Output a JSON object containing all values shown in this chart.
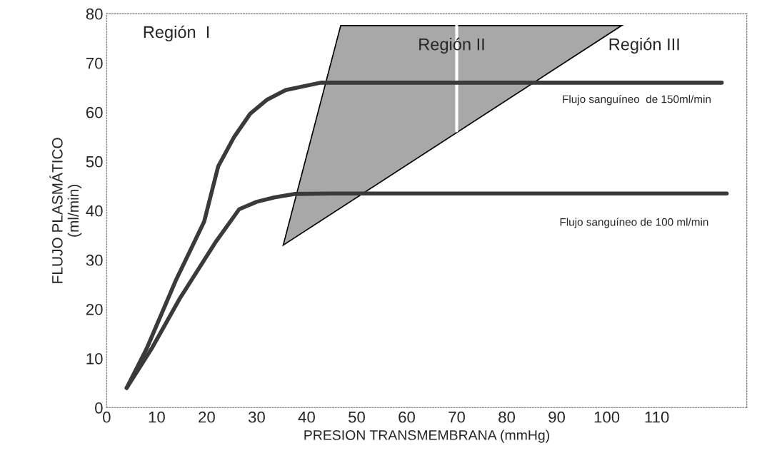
{
  "chart_data": {
    "type": "line",
    "xlabel": "PRESION TRANSMEMBRANA (mmHg)",
    "ylabel": "FLUJO PLASMÁTICO\n(ml/min)",
    "series": [
      {
        "type": "area",
        "color": "#a8a8a8",
        "x": [
          35.3,
          46.8,
          103,
          35.3
        ],
        "values": [
          33,
          77.6,
          77.6,
          33
        ]
      },
      {
        "color": "#ffffff",
        "x": [
          70,
          70
        ],
        "values": [
          56.2,
          77.6
        ]
      },
      {
        "color": "#3a3a3a",
        "x": [
          4,
          8,
          13.9,
          19.5,
          22.3,
          25.5,
          28.7,
          32,
          35.8,
          42.8,
          50,
          123
        ],
        "values": [
          4,
          12,
          26,
          37.8,
          49,
          55,
          59.7,
          62.5,
          64.5,
          66,
          66,
          66
        ]
      },
      {
        "color": "#3a3a3a",
        "x": [
          4,
          9,
          14.7,
          21.7,
          26.5,
          30,
          33.5,
          37.7,
          45,
          124
        ],
        "values": [
          4,
          12,
          22.3,
          33.5,
          40.3,
          41.8,
          42.7,
          43.4,
          43.5,
          43.5
        ]
      }
    ],
    "annotations": [
      "Región  I",
      "Región II",
      "Región III",
      "Flujo sanguíneo  de 150ml/min",
      "Flujo sanguíneo de 100 ml/min"
    ],
    "xlim": [
      0,
      128
    ],
    "ylim": [
      0,
      80
    ],
    "xticks": [
      0,
      10,
      20,
      30,
      40,
      50,
      60,
      70,
      80,
      90,
      100,
      110
    ],
    "yticks": [
      0,
      10,
      20,
      30,
      40,
      50,
      60,
      70,
      80
    ],
    "grid": false,
    "legend": false
  }
}
